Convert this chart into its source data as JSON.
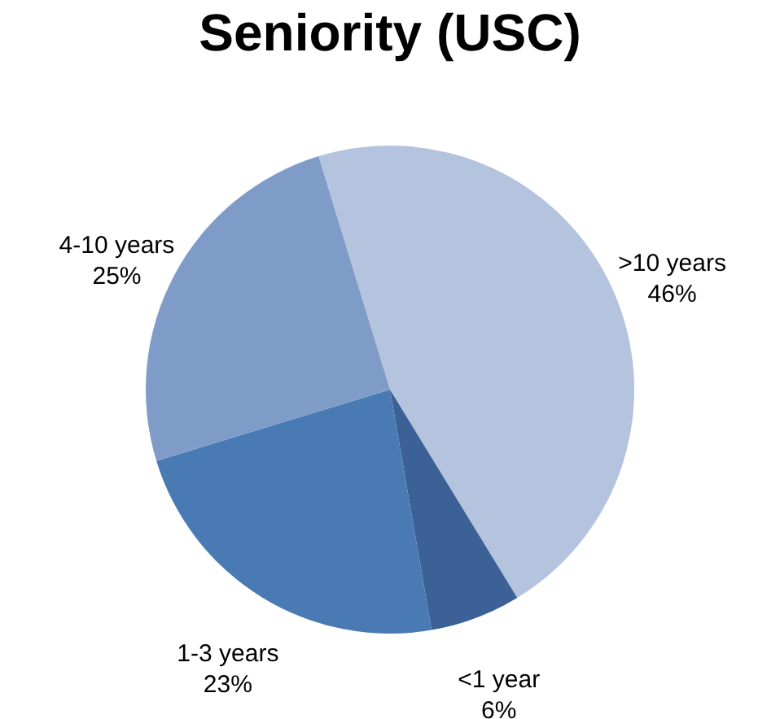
{
  "chart_data": {
    "type": "pie",
    "title": "Seniority (USC)",
    "categories": [
      ">10 years",
      "<1 year",
      "1-3 years",
      "4-10 years"
    ],
    "values": [
      46,
      6,
      23,
      25
    ],
    "value_labels": [
      "46%",
      "6%",
      "23%",
      "25%"
    ],
    "colors": [
      "#b4c3de",
      "#3c6196",
      "#4a7ab4",
      "#7f9cc9"
    ],
    "legend": false
  }
}
